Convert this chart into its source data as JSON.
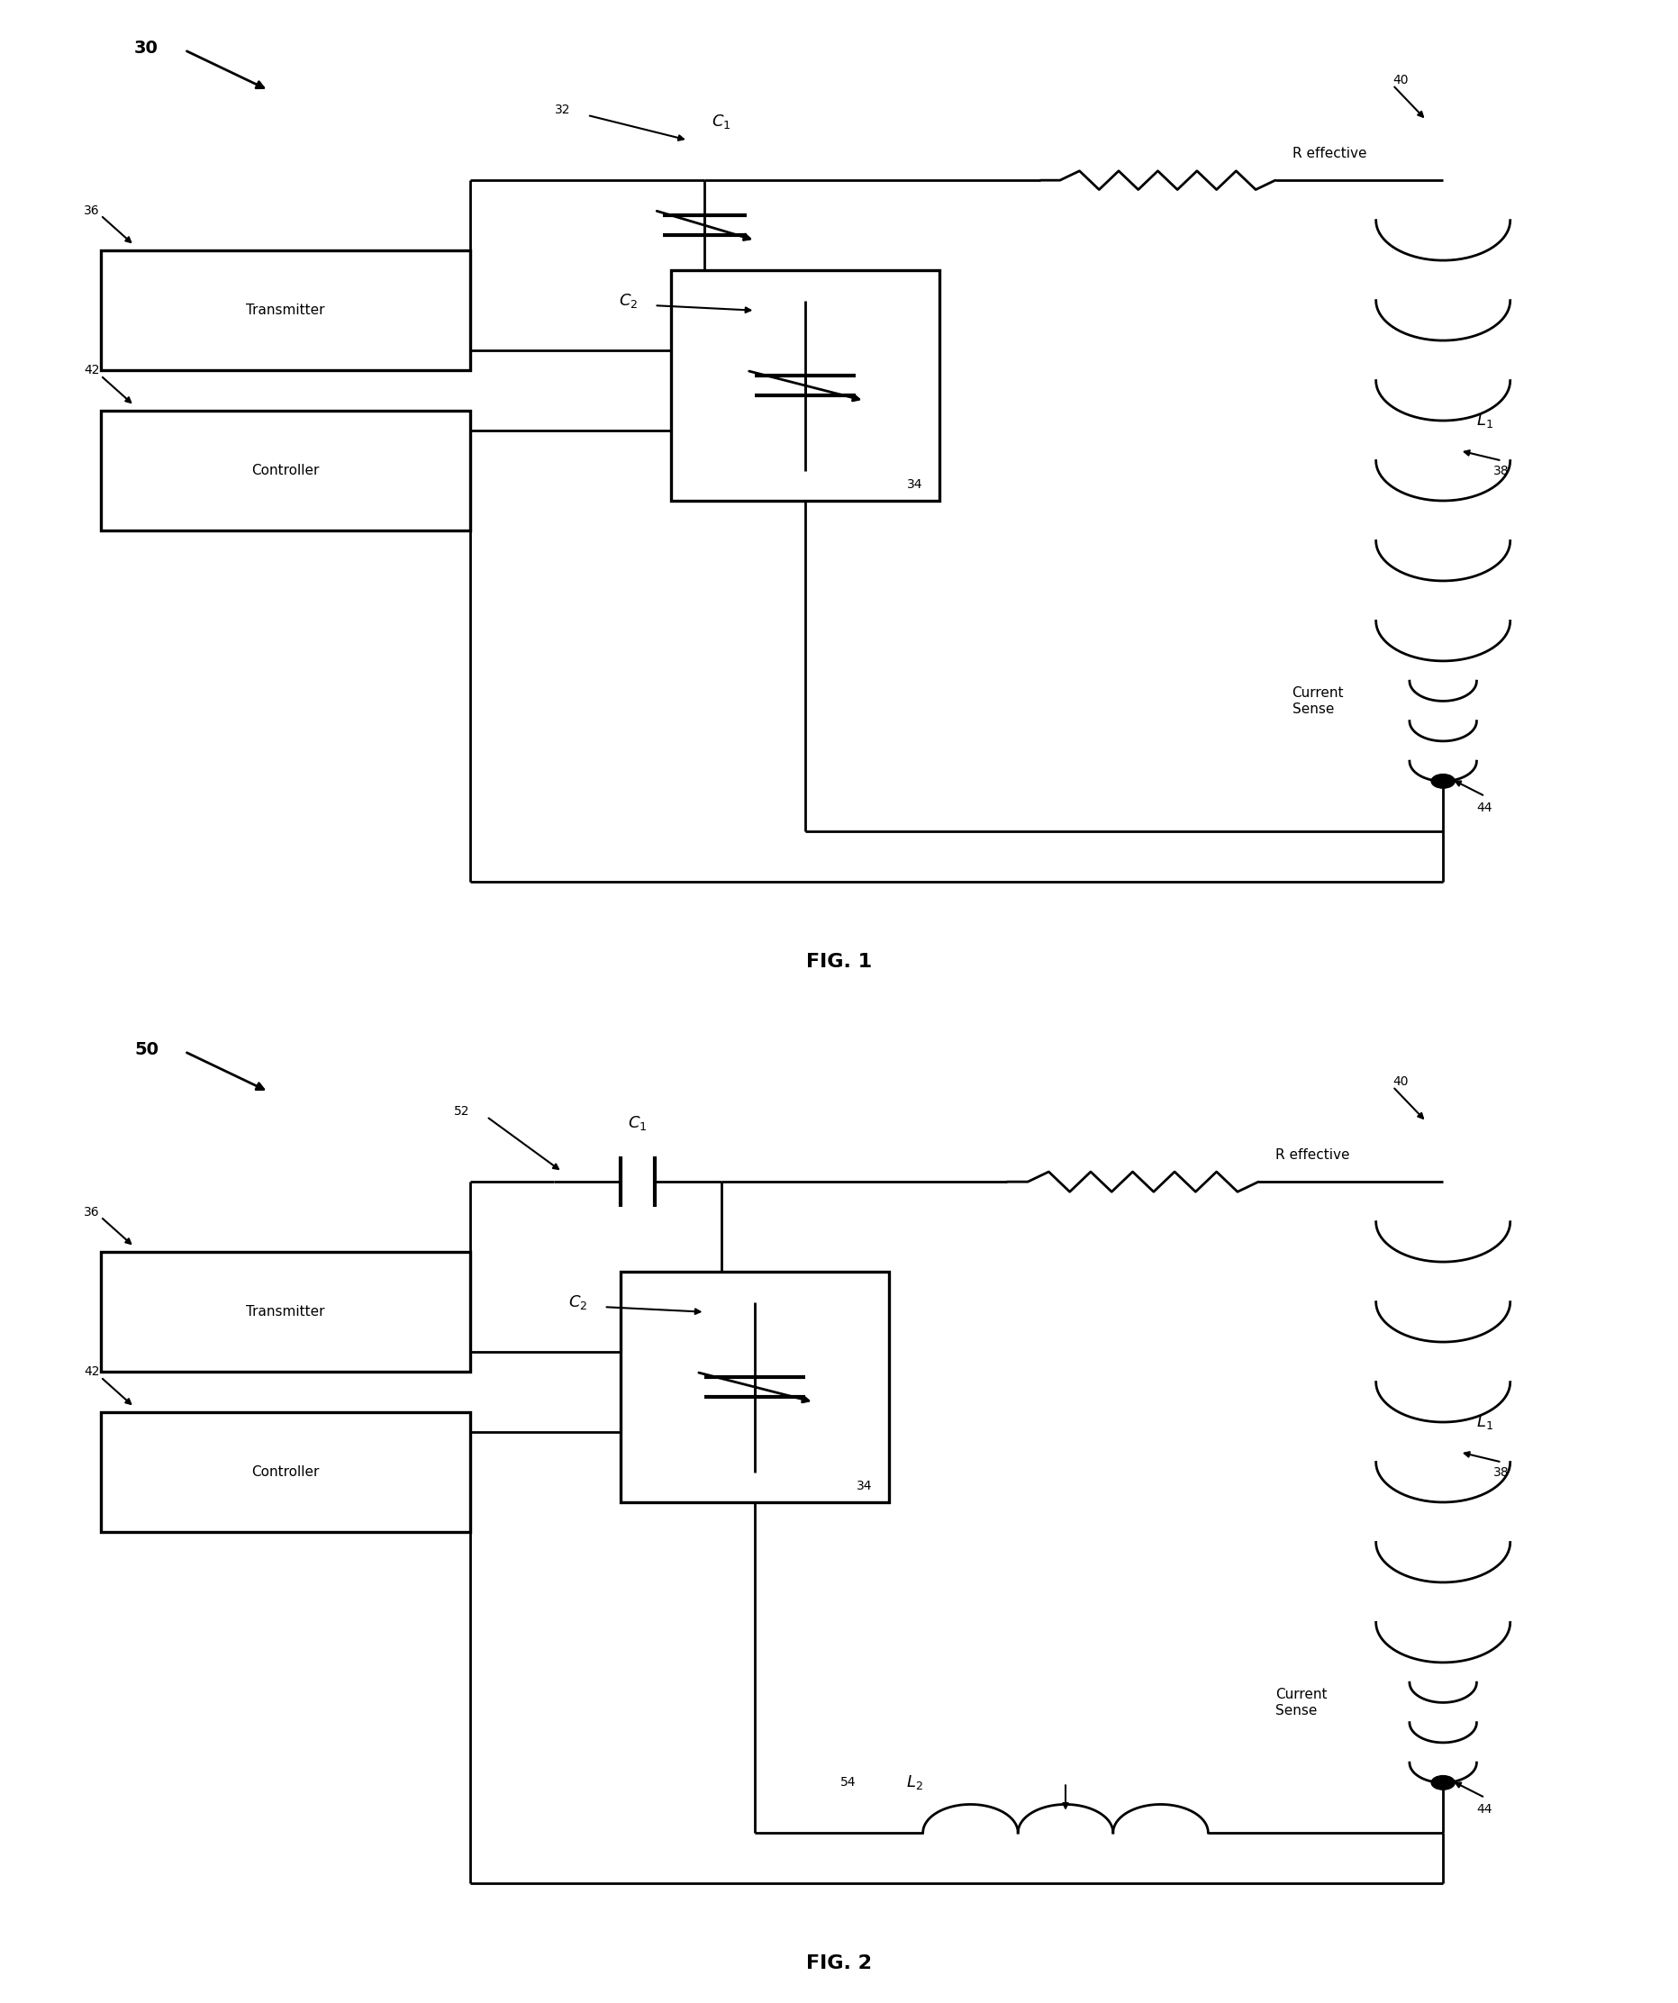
{
  "bg_color": "#ffffff",
  "line_color": "#000000",
  "lw": 2.0,
  "lw_thick": 3.0,
  "fig1_label": "FIG. 1",
  "fig2_label": "FIG. 2",
  "ref30": "30",
  "ref50": "50",
  "ref32": "32",
  "ref52": "52",
  "ref34": "34",
  "ref36": "36",
  "ref38": "38",
  "ref40": "40",
  "ref42": "42",
  "ref44": "44",
  "ref54": "54",
  "C1_label": "$C_1$",
  "C2_label": "$C_2$",
  "L1_label": "$L_1$",
  "L2_label": "$L_2$",
  "R_label": "R effective",
  "TX_label": "Transmitter",
  "CTRL_label": "Controller",
  "CS_label": "Current\nSense"
}
